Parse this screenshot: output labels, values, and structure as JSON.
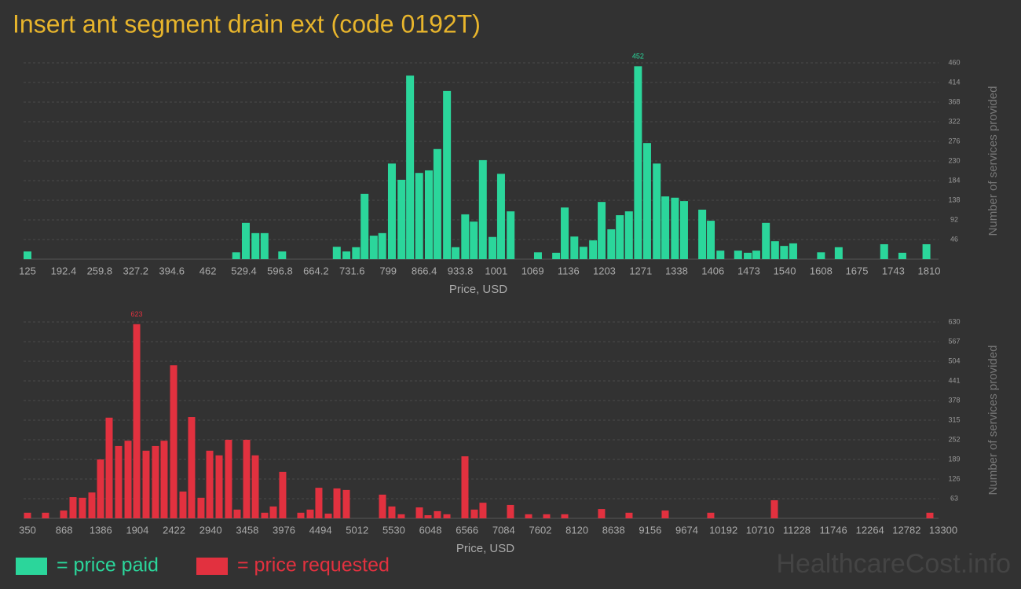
{
  "title": "Insert ant segment drain ext (code 0192T)",
  "watermark": "HealthcareCost.info",
  "chart_data": [
    {
      "type": "bar",
      "x_label": "Price, USD",
      "y_label": "Number of services provided",
      "xlim": [
        125,
        1810
      ],
      "ylim": [
        0,
        460
      ],
      "xticks": [
        125,
        192.4,
        259.8,
        327.2,
        394.6,
        462,
        529.4,
        596.8,
        664.2,
        731.6,
        799,
        866.4,
        933.8,
        1001,
        1069,
        1136,
        1203,
        1271,
        1338,
        1406,
        1473,
        1540,
        1608,
        1675,
        1743,
        1810
      ],
      "yticks": [
        46,
        92,
        138,
        184,
        230,
        276,
        322,
        368,
        414,
        460
      ],
      "grid": true,
      "label_max": true,
      "series": [
        {
          "name": "= price paid",
          "color": "#2bd69b",
          "x": [
            125,
            515,
            533,
            551,
            568,
            601,
            703,
            721,
            739,
            755,
            772,
            788,
            806,
            824,
            840,
            857,
            875,
            891,
            909,
            925,
            943,
            959,
            976,
            994,
            1010,
            1028,
            1079,
            1113,
            1129,
            1147,
            1164,
            1182,
            1198,
            1216,
            1232,
            1249,
            1266,
            1283,
            1301,
            1317,
            1335,
            1352,
            1386,
            1402,
            1420,
            1453,
            1471,
            1487,
            1505,
            1522,
            1539,
            1556,
            1608,
            1641,
            1726,
            1760,
            1805
          ],
          "values": [
            18,
            16,
            85,
            61,
            61,
            18,
            29,
            18,
            28,
            153,
            55,
            61,
            224,
            186,
            430,
            202,
            208,
            258,
            394,
            28,
            105,
            88,
            232,
            52,
            200,
            112,
            16,
            15,
            121,
            53,
            29,
            44,
            134,
            70,
            103,
            112,
            452,
            272,
            224,
            147,
            144,
            136,
            116,
            90,
            20,
            20,
            15,
            20,
            85,
            42,
            31,
            37,
            16,
            28,
            35,
            15,
            35
          ]
        }
      ]
    },
    {
      "type": "bar",
      "x_label": "Price, USD",
      "y_label": "Number of services provided",
      "xlim": [
        350,
        13300
      ],
      "ylim": [
        0,
        630
      ],
      "xticks": [
        350,
        868,
        1386,
        1904,
        2422,
        2940,
        3458,
        3976,
        4494,
        5012,
        5530,
        6048,
        6566,
        7084,
        7602,
        8120,
        8638,
        9156,
        9674,
        10192,
        10710,
        11228,
        11746,
        12264,
        12782,
        13300
      ],
      "yticks": [
        63,
        126,
        189,
        252,
        315,
        378,
        441,
        504,
        567,
        630
      ],
      "grid": true,
      "label_max": true,
      "series": [
        {
          "name": "= price requested",
          "color": "#e2313f",
          "x": [
            350,
            605,
            861,
            994,
            1127,
            1261,
            1383,
            1505,
            1638,
            1772,
            1894,
            2027,
            2160,
            2282,
            2416,
            2549,
            2671,
            2804,
            2927,
            3060,
            3193,
            3315,
            3449,
            3571,
            3704,
            3826,
            3959,
            4215,
            4348,
            4470,
            4604,
            4726,
            4859,
            5370,
            5503,
            5636,
            5892,
            6014,
            6147,
            6281,
            6536,
            6669,
            6791,
            7180,
            7436,
            7691,
            7947,
            8468,
            8857,
            9368,
            10012,
            10912,
            13111
          ],
          "values": [
            18,
            18,
            25,
            68,
            66,
            83,
            189,
            323,
            232,
            249,
            623,
            217,
            232,
            249,
            491,
            86,
            325,
            66,
            217,
            202,
            252,
            28,
            252,
            202,
            18,
            38,
            149,
            18,
            28,
            98,
            15,
            96,
            91,
            76,
            38,
            13,
            35,
            10,
            23,
            13,
            199,
            28,
            50,
            43,
            13,
            13,
            13,
            30,
            18,
            25,
            18,
            58,
            18
          ]
        }
      ]
    }
  ]
}
